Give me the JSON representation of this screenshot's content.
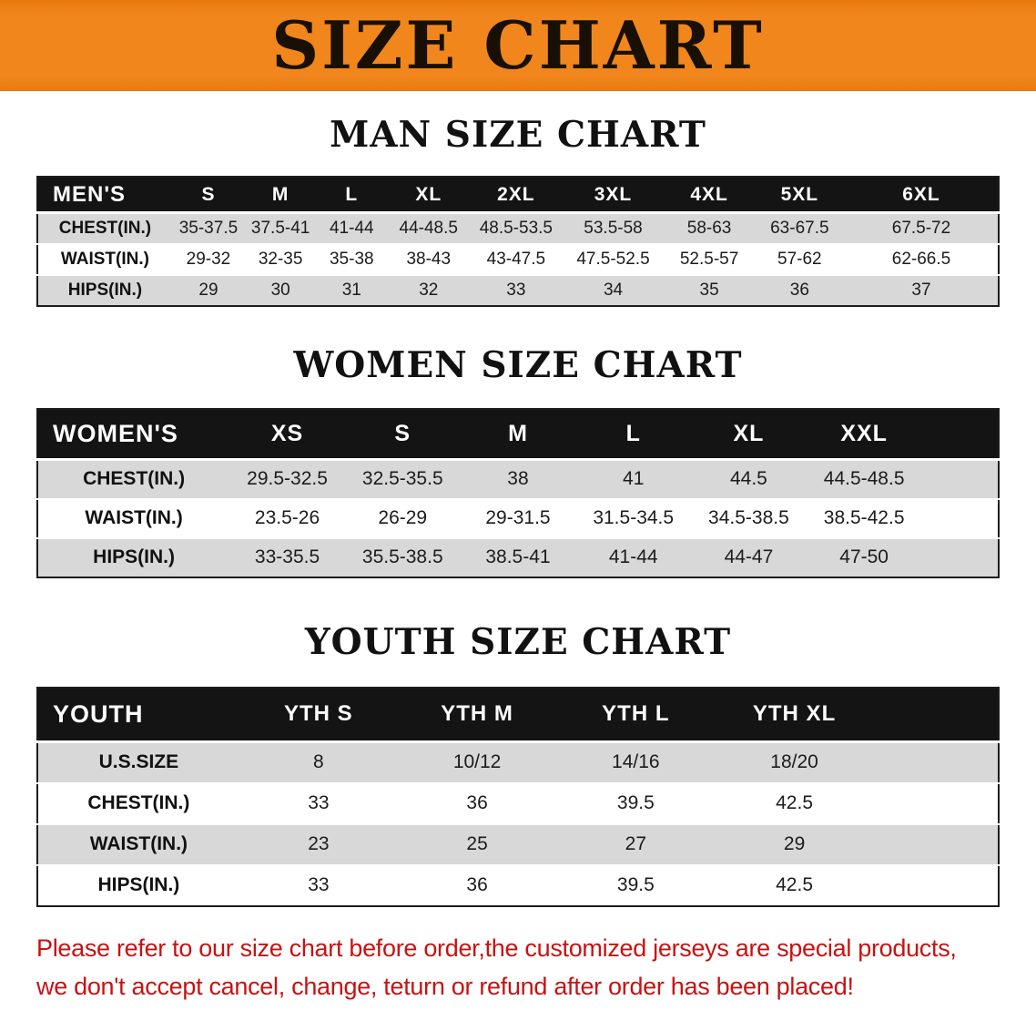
{
  "banner": {
    "title": "SIZE CHART"
  },
  "colors": {
    "banner_bg": "#f1861c",
    "header_bg": "#141414",
    "stripe": "#d8d8d8",
    "footer_text": "#c81212",
    "page_bg": "#ffffff"
  },
  "chart_data": [
    {
      "type": "table",
      "id": "men",
      "title": "MAN SIZE CHART",
      "columns": [
        "MEN'S",
        "S",
        "M",
        "L",
        "XL",
        "2XL",
        "3XL",
        "4XL",
        "5XL",
        "6XL"
      ],
      "rows": [
        [
          "CHEST(IN.)",
          "35-37.5",
          "37.5-41",
          "41-44",
          "44-48.5",
          "48.5-53.5",
          "53.5-58",
          "58-63",
          "63-67.5",
          "67.5-72"
        ],
        [
          "WAIST(IN.)",
          "29-32",
          "32-35",
          "35-38",
          "38-43",
          "43-47.5",
          "47.5-52.5",
          "52.5-57",
          "57-62",
          "62-66.5"
        ],
        [
          "HIPS(IN.)",
          "29",
          "30",
          "31",
          "32",
          "33",
          "34",
          "35",
          "36",
          "37"
        ]
      ],
      "col_widths": [
        "14%",
        "7.6%",
        "7.4%",
        "7.4%",
        "8.6%",
        "9.6%",
        "10.6%",
        "9.4%",
        "9.4%",
        "16%"
      ]
    },
    {
      "type": "table",
      "id": "women",
      "title": "WOMEN SIZE CHART",
      "columns": [
        "WOMEN'S",
        "XS",
        "S",
        "M",
        "L",
        "XL",
        "XXL"
      ],
      "rows": [
        [
          "CHEST(IN.)",
          "29.5-32.5",
          "32.5-35.5",
          "38",
          "41",
          "44.5",
          "44.5-48.5"
        ],
        [
          "WAIST(IN.)",
          "23.5-26",
          "26-29",
          "29-31.5",
          "31.5-34.5",
          "34.5-38.5",
          "38.5-42.5"
        ],
        [
          "HIPS(IN.)",
          "33-35.5",
          "35.5-38.5",
          "38.5-41",
          "41-44",
          "44-47",
          "47-50"
        ]
      ],
      "col_widths": [
        "20%",
        "12%",
        "12%",
        "12%",
        "12%",
        "12%",
        "12%",
        "8%"
      ]
    },
    {
      "type": "table",
      "id": "youth",
      "title": "YOUTH SIZE CHART",
      "columns": [
        "YOUTH",
        "YTH S",
        "YTH M",
        "YTH L",
        "YTH XL"
      ],
      "rows": [
        [
          "U.S.SIZE",
          "8",
          "10/12",
          "14/16",
          "18/20"
        ],
        [
          "CHEST(IN.)",
          "33",
          "36",
          "39.5",
          "42.5"
        ],
        [
          "WAIST(IN.)",
          "23",
          "25",
          "27",
          "29"
        ],
        [
          "HIPS(IN.)",
          "33",
          "36",
          "39.5",
          "42.5"
        ]
      ],
      "col_widths": [
        "21%",
        "16.5%",
        "16.5%",
        "16.5%",
        "16.5%",
        "13%"
      ]
    }
  ],
  "footer": {
    "line1": "Please refer to our size chart before order,the customized jerseys are special products,",
    "line2": "we don't accept cancel, change, teturn or refund after order has been placed!"
  }
}
